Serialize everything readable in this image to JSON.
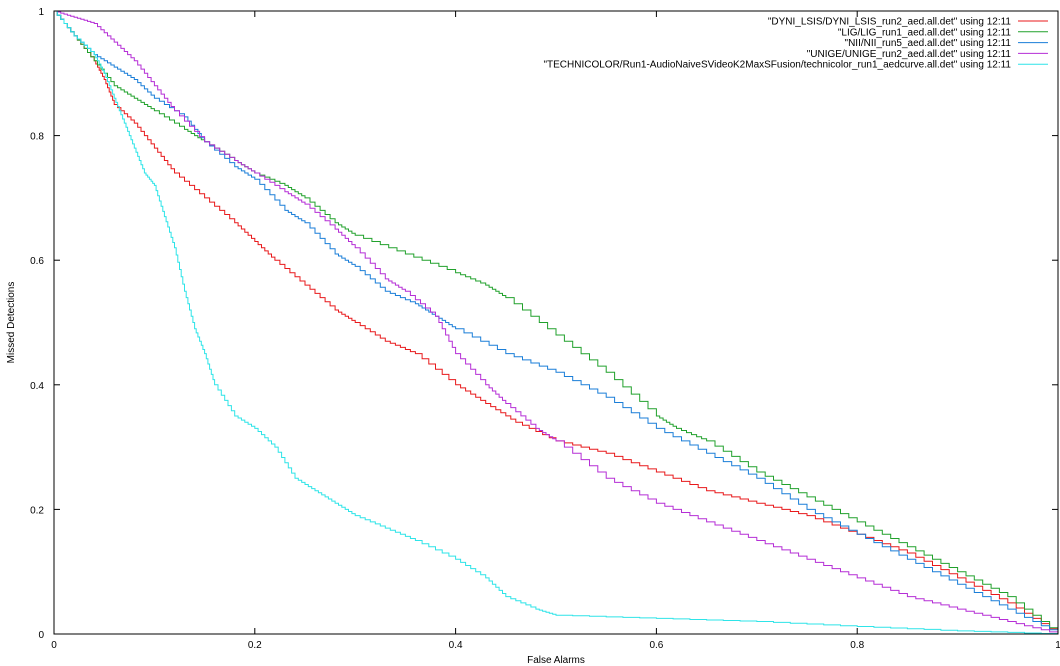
{
  "chart_data": {
    "type": "line",
    "title": "",
    "xlabel": "False Alarms",
    "ylabel": "Missed Detections",
    "xlim": [
      0,
      1
    ],
    "ylim": [
      0,
      1
    ],
    "x_ticks": [
      "0",
      "0.2",
      "0.4",
      "0.6",
      "0.8",
      "1"
    ],
    "y_ticks": [
      "0",
      "0.2",
      "0.4",
      "0.6",
      "0.8",
      "1"
    ],
    "grid": false,
    "legend_position": "top-right",
    "series": [
      {
        "name": "\"DYNI_LSIS/DYNI_LSIS_run2_aed.all.det\" using 12:11",
        "color": "#e8191b",
        "x": [
          0,
          0.02,
          0.04,
          0.05,
          0.06,
          0.08,
          0.1,
          0.12,
          0.15,
          0.18,
          0.2,
          0.22,
          0.25,
          0.28,
          0.3,
          0.33,
          0.36,
          0.4,
          0.43,
          0.46,
          0.5,
          0.55,
          0.6,
          0.65,
          0.7,
          0.75,
          0.8,
          0.85,
          0.9,
          0.95,
          1.0
        ],
        "y": [
          1.0,
          0.96,
          0.92,
          0.89,
          0.85,
          0.82,
          0.78,
          0.74,
          0.7,
          0.66,
          0.63,
          0.6,
          0.56,
          0.52,
          0.5,
          0.47,
          0.45,
          0.4,
          0.37,
          0.34,
          0.31,
          0.29,
          0.26,
          0.23,
          0.21,
          0.19,
          0.16,
          0.13,
          0.09,
          0.05,
          0.0
        ]
      },
      {
        "name": "\"LIG/LIG_run1_aed.all.det\" using 12:11",
        "color": "#21a12c",
        "x": [
          0,
          0.02,
          0.04,
          0.06,
          0.08,
          0.1,
          0.13,
          0.15,
          0.18,
          0.2,
          0.23,
          0.25,
          0.28,
          0.3,
          0.35,
          0.4,
          0.43,
          0.45,
          0.5,
          0.55,
          0.6,
          0.62,
          0.65,
          0.7,
          0.75,
          0.8,
          0.85,
          0.9,
          0.95,
          1.0
        ],
        "y": [
          1.0,
          0.96,
          0.92,
          0.88,
          0.86,
          0.84,
          0.81,
          0.79,
          0.76,
          0.74,
          0.72,
          0.7,
          0.66,
          0.64,
          0.61,
          0.58,
          0.56,
          0.54,
          0.48,
          0.42,
          0.35,
          0.33,
          0.31,
          0.26,
          0.22,
          0.18,
          0.14,
          0.1,
          0.06,
          0.0
        ]
      },
      {
        "name": "\"NII/NII_run5_aed.all.det\" using 12:11",
        "color": "#1a7ed8",
        "x": [
          0,
          0.02,
          0.04,
          0.06,
          0.08,
          0.1,
          0.13,
          0.15,
          0.18,
          0.2,
          0.23,
          0.25,
          0.28,
          0.3,
          0.33,
          0.36,
          0.38,
          0.4,
          0.45,
          0.5,
          0.55,
          0.6,
          0.65,
          0.7,
          0.75,
          0.8,
          0.85,
          0.9,
          0.95,
          1.0
        ],
        "y": [
          1.0,
          0.96,
          0.93,
          0.91,
          0.89,
          0.86,
          0.83,
          0.79,
          0.75,
          0.73,
          0.68,
          0.66,
          0.61,
          0.59,
          0.55,
          0.53,
          0.51,
          0.49,
          0.45,
          0.42,
          0.38,
          0.33,
          0.29,
          0.25,
          0.2,
          0.16,
          0.12,
          0.08,
          0.04,
          0.0
        ]
      },
      {
        "name": "\"UNIGE/UNIGE_run2_aed.all.det\" using 12:11",
        "color": "#b52ed6",
        "x": [
          0,
          0.02,
          0.04,
          0.06,
          0.08,
          0.1,
          0.12,
          0.15,
          0.18,
          0.2,
          0.23,
          0.25,
          0.28,
          0.3,
          0.33,
          0.35,
          0.38,
          0.4,
          0.43,
          0.45,
          0.48,
          0.5,
          0.55,
          0.6,
          0.65,
          0.7,
          0.75,
          0.8,
          0.85,
          0.9,
          0.95,
          1.0
        ],
        "y": [
          1.0,
          0.99,
          0.98,
          0.95,
          0.92,
          0.88,
          0.84,
          0.79,
          0.76,
          0.74,
          0.71,
          0.69,
          0.65,
          0.62,
          0.57,
          0.55,
          0.51,
          0.45,
          0.4,
          0.37,
          0.33,
          0.31,
          0.25,
          0.21,
          0.18,
          0.15,
          0.12,
          0.09,
          0.06,
          0.04,
          0.02,
          0.0
        ]
      },
      {
        "name": "\"TECHNICOLOR/Run1-AudioNaiveSVideoK2MaxSFusion/technicolor_run1_aedcurve.all.det\" using 12:11",
        "color": "#2ee4e8",
        "x": [
          0,
          0.02,
          0.04,
          0.05,
          0.06,
          0.07,
          0.08,
          0.09,
          0.1,
          0.11,
          0.12,
          0.13,
          0.14,
          0.15,
          0.16,
          0.18,
          0.2,
          0.22,
          0.24,
          0.26,
          0.28,
          0.3,
          0.33,
          0.36,
          0.4,
          0.43,
          0.45,
          0.48,
          0.5,
          0.6,
          0.7,
          0.8,
          0.9,
          1.0
        ],
        "y": [
          1.0,
          0.96,
          0.93,
          0.9,
          0.86,
          0.82,
          0.78,
          0.74,
          0.72,
          0.67,
          0.62,
          0.55,
          0.49,
          0.45,
          0.4,
          0.35,
          0.33,
          0.3,
          0.25,
          0.23,
          0.21,
          0.19,
          0.17,
          0.15,
          0.12,
          0.09,
          0.06,
          0.04,
          0.03,
          0.025,
          0.02,
          0.012,
          0.005,
          0.0
        ]
      }
    ]
  }
}
